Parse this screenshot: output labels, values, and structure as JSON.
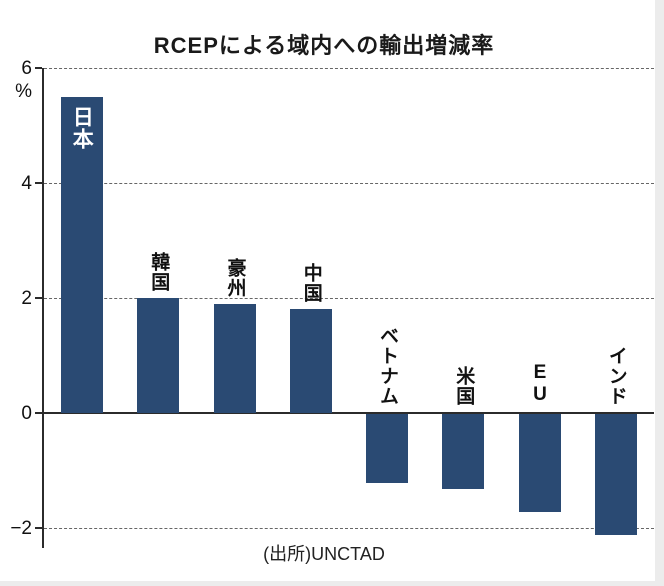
{
  "page": {
    "background": "#ffffff"
  },
  "chart_data": {
    "type": "bar",
    "title": "RCEPによる域内への輸出増減率",
    "unit_label": "%",
    "source": "(出所)UNCTAD",
    "categories": [
      "日本",
      "韓国",
      "豪州",
      "中国",
      "ベトナム",
      "米国",
      "EU",
      "インド"
    ],
    "values": [
      5.5,
      2.0,
      1.9,
      1.8,
      -1.2,
      -1.3,
      -1.7,
      -2.1
    ],
    "yticks": [
      6,
      4,
      2,
      0,
      -2
    ],
    "ytick_labels": [
      "6",
      "4",
      "2",
      "0",
      "−2"
    ],
    "ylim": [
      -2.35,
      6
    ],
    "grid": "dashed horizontal lines at ticks, solid line at zero",
    "legend": "none",
    "bar_color": "#2a4a73",
    "label_inside_bar_index": 0
  }
}
